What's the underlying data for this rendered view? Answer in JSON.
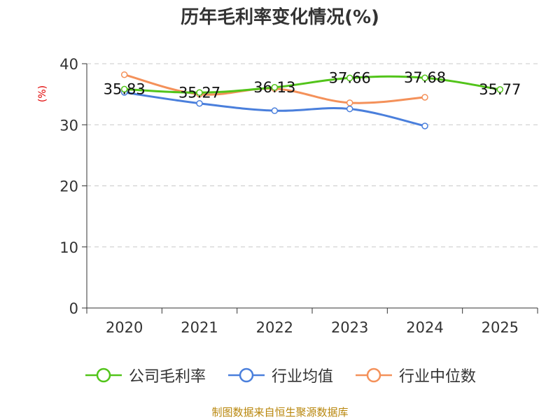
{
  "chart_data": {
    "type": "line",
    "title": "历年毛利率变化情况(%)",
    "ylabel": "(%)",
    "categories": [
      "2020",
      "2021",
      "2022",
      "2023",
      "2024",
      "2025"
    ],
    "ylim": [
      0,
      40
    ],
    "yticks": [
      "0",
      "10",
      "20",
      "30",
      "40"
    ],
    "grid": true,
    "legend_position": "bottom",
    "series": [
      {
        "name": "公司毛利率",
        "color": "#52c41a",
        "values": [
          35.83,
          35.27,
          36.13,
          37.66,
          37.68,
          35.77
        ],
        "labels": [
          "35.83",
          "35.27",
          "36.13",
          "37.66",
          "37.68",
          "35.77"
        ]
      },
      {
        "name": "行业均值",
        "color": "#4a7fdc",
        "values": [
          35.3,
          33.5,
          32.3,
          32.6,
          29.8,
          null
        ]
      },
      {
        "name": "行业中位数",
        "color": "#f4915a",
        "values": [
          38.2,
          35.0,
          35.9,
          33.6,
          34.5,
          null
        ]
      }
    ]
  },
  "source": "制图数据来自恒生聚源数据库"
}
